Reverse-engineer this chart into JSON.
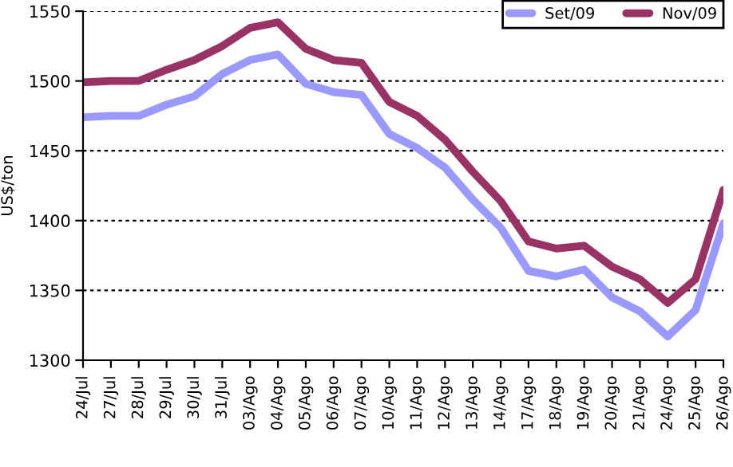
{
  "chart_data": {
    "type": "line",
    "ylabel": "US$/ton",
    "categories": [
      "24/Jul",
      "27/Jul",
      "28/Jul",
      "29/Jul",
      "30/Jul",
      "31/Jul",
      "03/Ago",
      "04/Ago",
      "05/Ago",
      "06/Ago",
      "07/Ago",
      "10/Ago",
      "11/Ago",
      "12/Ago",
      "13/Ago",
      "14/Ago",
      "17/Ago",
      "18/Ago",
      "19/Ago",
      "20/Ago",
      "21/Ago",
      "24/Ago",
      "25/Ago",
      "26/Ago"
    ],
    "series": [
      {
        "name": "Set/09",
        "color": "#9999ff",
        "values": [
          1474,
          1475,
          1475,
          1483,
          1489,
          1505,
          1515,
          1519,
          1498,
          1492,
          1490,
          1462,
          1452,
          1438,
          1415,
          1395,
          1364,
          1360,
          1365,
          1345,
          1335,
          1317,
          1336,
          1398
        ]
      },
      {
        "name": "Nov/09",
        "color": "#993366",
        "values": [
          1499,
          1500,
          1500,
          1508,
          1515,
          1525,
          1538,
          1542,
          1523,
          1515,
          1513,
          1485,
          1475,
          1458,
          1435,
          1414,
          1385,
          1380,
          1382,
          1367,
          1358,
          1341,
          1358,
          1422
        ]
      }
    ],
    "ylim": [
      1300,
      1550
    ],
    "yticks": [
      1300,
      1350,
      1400,
      1450,
      1500,
      1550
    ],
    "grid": "y",
    "legend": "top right",
    "marker": "none",
    "line_style": "solid"
  }
}
